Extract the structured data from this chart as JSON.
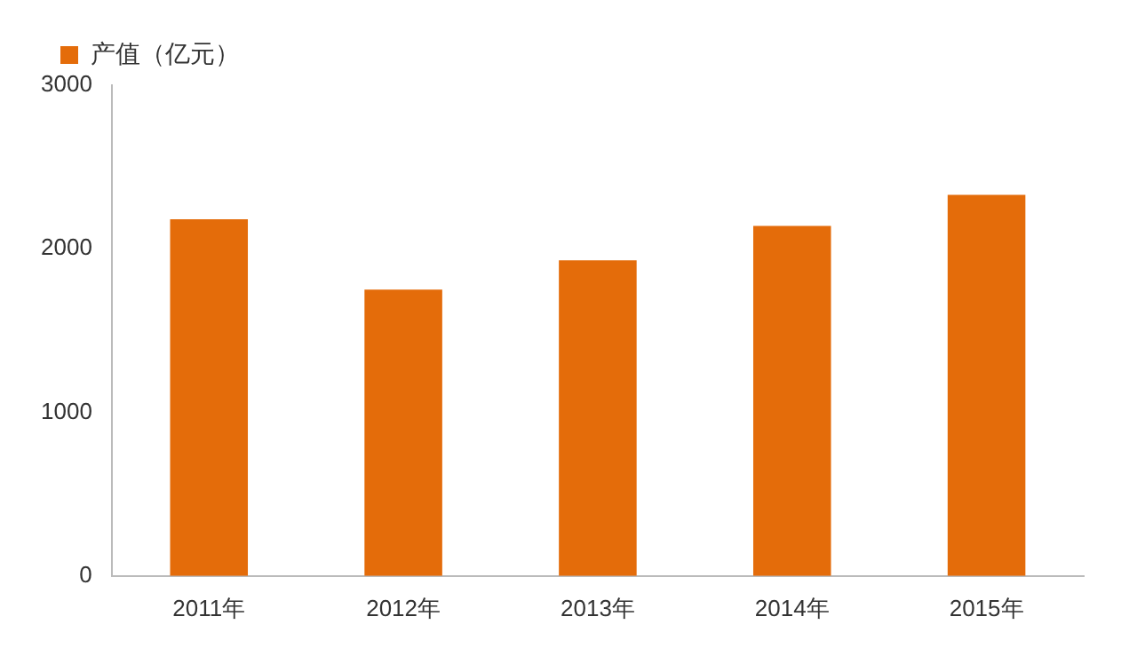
{
  "chart_data": {
    "type": "bar",
    "categories": [
      "2011年",
      "2012年",
      "2013年",
      "2014年",
      "2015年"
    ],
    "series": [
      {
        "name": "产值（亿元）",
        "color": "#e46c0a",
        "values": [
          2180,
          1750,
          1930,
          2140,
          2330
        ]
      }
    ],
    "ylim": [
      0,
      3000
    ],
    "yticks": [
      0,
      1000,
      2000,
      3000
    ],
    "grid": false,
    "legend": "top"
  }
}
